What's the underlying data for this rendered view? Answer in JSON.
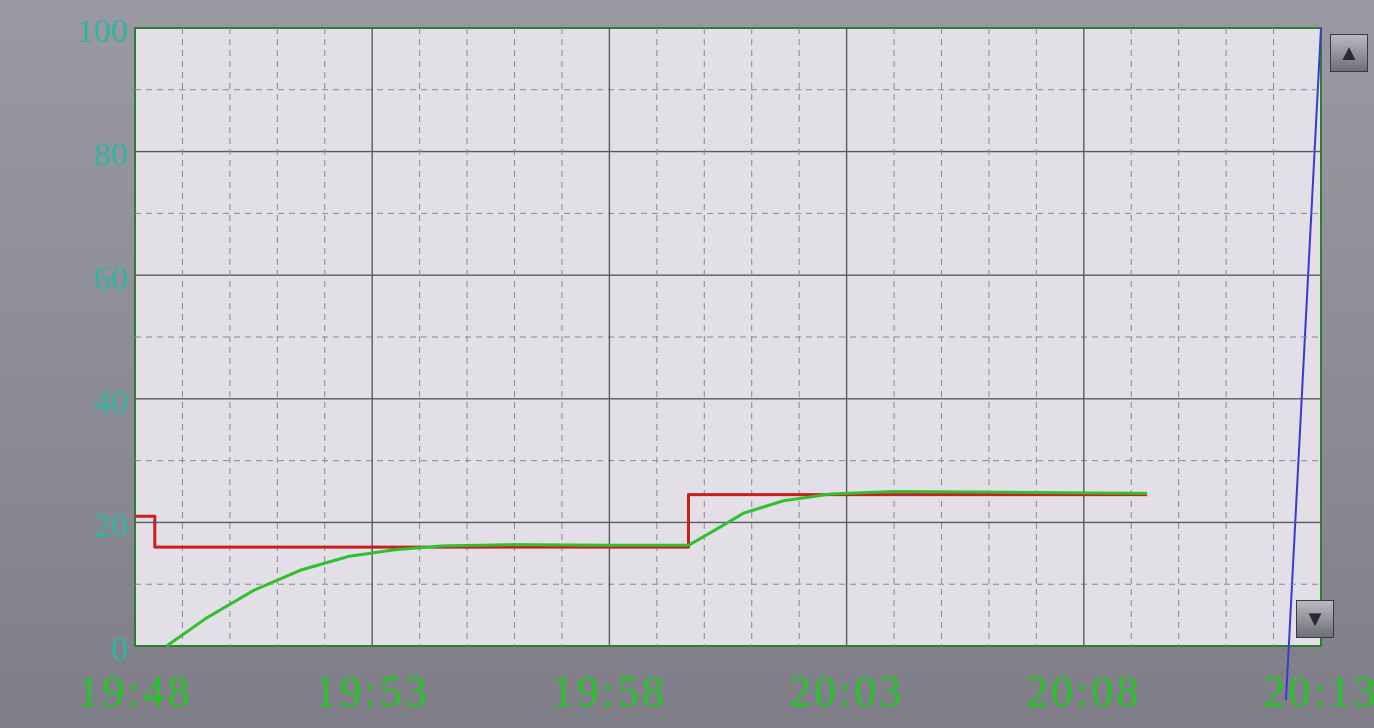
{
  "chart_data": {
    "type": "line",
    "title": "",
    "xlabel": "",
    "ylabel": "",
    "ylim": [
      0,
      100
    ],
    "yticks": [
      "0",
      "20",
      "40",
      "60",
      "80",
      "100"
    ],
    "xlim_minutes": [
      0,
      25
    ],
    "xticks": [
      "19:48",
      "19:53",
      "19:58",
      "20:03",
      "20:08",
      "20:13"
    ],
    "grid": true,
    "series": [
      {
        "color": "#c8201c",
        "x": [
          "19:48:00",
          "19:48:25",
          "19:48:25",
          "19:59:40",
          "19:59:40",
          "20:09:20"
        ],
        "values": [
          21,
          21,
          16,
          16,
          24.5,
          24.5
        ]
      },
      {
        "color": "#2fbf2f",
        "x": [
          "19:48:40",
          "19:49:30",
          "19:50:30",
          "19:51:30",
          "19:52:30",
          "19:53:30",
          "19:54:30",
          "19:56:00",
          "19:58:00",
          "19:59:40",
          "20:00:10",
          "20:00:50",
          "20:01:40",
          "20:02:40",
          "20:04:00",
          "20:06:00",
          "20:09:20"
        ],
        "values": [
          0,
          4.5,
          9,
          12.3,
          14.5,
          15.6,
          16.2,
          16.4,
          16.3,
          16.3,
          18.5,
          21.5,
          23.5,
          24.6,
          25.0,
          24.9,
          24.7
        ]
      }
    ]
  },
  "controls": {
    "scroll_up_icon": "triangle-up-icon",
    "scroll_down_icon": "triangle-down-icon",
    "up_glyph": "▲",
    "down_glyph": "▼"
  }
}
